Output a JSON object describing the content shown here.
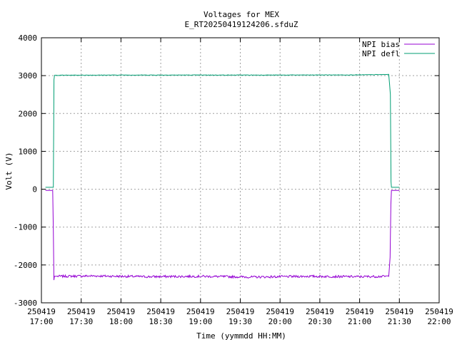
{
  "chart_data": {
    "type": "line",
    "title": "Voltages for MEX",
    "subtitle": "E_RT20250419124206.sfduZ",
    "xlabel": "Time (yymmdd HH:MM)",
    "ylabel": "Volt (V)",
    "x_unit": "minutes",
    "xlim": [
      0,
      300
    ],
    "ylim": [
      -3000,
      4000
    ],
    "x_ticks": [
      {
        "x": 0,
        "date": "250419",
        "time": "17:00"
      },
      {
        "x": 30,
        "date": "250419",
        "time": "17:30"
      },
      {
        "x": 60,
        "date": "250419",
        "time": "18:00"
      },
      {
        "x": 90,
        "date": "250419",
        "time": "18:30"
      },
      {
        "x": 120,
        "date": "250419",
        "time": "19:00"
      },
      {
        "x": 150,
        "date": "250419",
        "time": "19:30"
      },
      {
        "x": 180,
        "date": "250419",
        "time": "20:00"
      },
      {
        "x": 210,
        "date": "250419",
        "time": "20:30"
      },
      {
        "x": 240,
        "date": "250419",
        "time": "21:00"
      },
      {
        "x": 270,
        "date": "250419",
        "time": "21:30"
      },
      {
        "x": 300,
        "date": "250419",
        "time": "22:00"
      }
    ],
    "y_ticks": [
      -3000,
      -2000,
      -1000,
      0,
      1000,
      2000,
      3000,
      4000
    ],
    "grid": true,
    "legend_position": "top-right",
    "series": [
      {
        "name": "NPI bias",
        "color": "#9400d3",
        "x": [
          3,
          8.5,
          9,
          9.4,
          9.8,
          12,
          40,
          80,
          120,
          160,
          200,
          240,
          262,
          263,
          263.6,
          264,
          264.4,
          270
        ],
        "y": [
          -30,
          -30,
          -1100,
          -2400,
          -2300,
          -2300,
          -2290,
          -2310,
          -2300,
          -2320,
          -2300,
          -2310,
          -2300,
          -1800,
          -400,
          -30,
          -30,
          -30
        ]
      },
      {
        "name": "NPI defl",
        "color": "#009e73",
        "x": [
          3,
          9,
          9.5,
          9.9,
          12,
          60,
          120,
          180,
          240,
          262,
          263.2,
          263.7,
          264,
          270
        ],
        "y": [
          50,
          50,
          2900,
          3010,
          3010,
          3015,
          3015,
          3015,
          3020,
          3030,
          2500,
          200,
          50,
          50
        ]
      }
    ]
  }
}
